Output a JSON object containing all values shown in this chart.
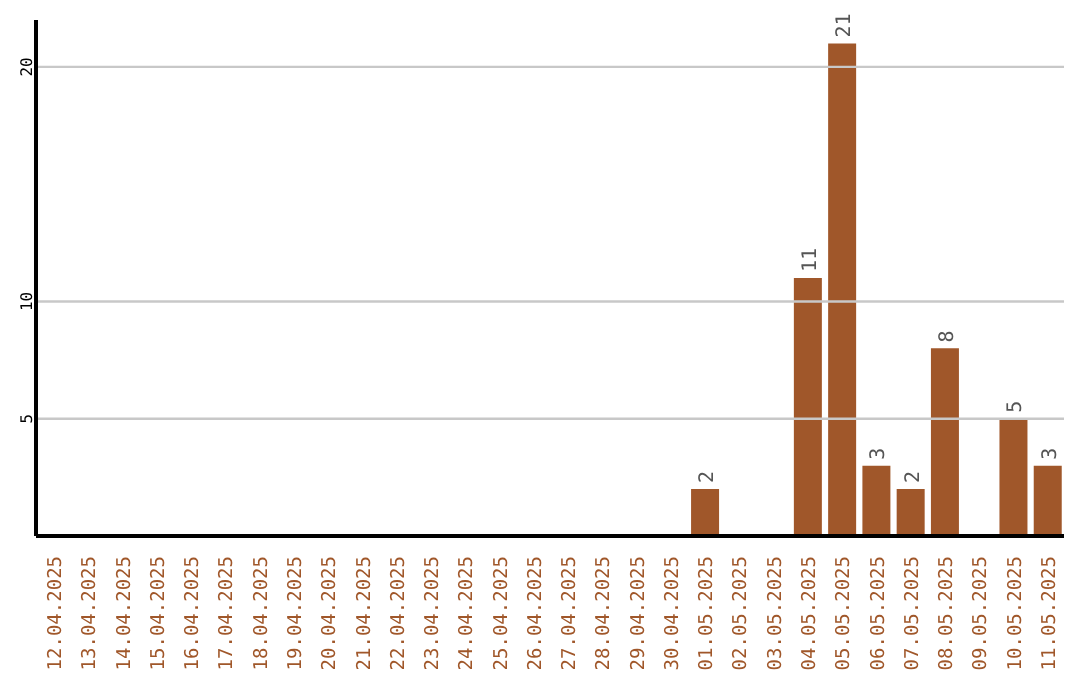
{
  "chart_data": {
    "type": "bar",
    "categories": [
      "12.04.2025",
      "13.04.2025",
      "14.04.2025",
      "15.04.2025",
      "16.04.2025",
      "17.04.2025",
      "18.04.2025",
      "19.04.2025",
      "20.04.2025",
      "21.04.2025",
      "22.04.2025",
      "23.04.2025",
      "24.04.2025",
      "25.04.2025",
      "26.04.2025",
      "27.04.2025",
      "28.04.2025",
      "29.04.2025",
      "30.04.2025",
      "01.05.2025",
      "02.05.2025",
      "03.05.2025",
      "04.05.2025",
      "05.05.2025",
      "06.05.2025",
      "07.05.2025",
      "08.05.2025",
      "09.05.2025",
      "10.05.2025",
      "11.05.2025"
    ],
    "values": [
      null,
      null,
      null,
      null,
      null,
      null,
      null,
      null,
      null,
      null,
      null,
      null,
      null,
      null,
      null,
      null,
      null,
      null,
      null,
      2,
      null,
      null,
      11,
      21,
      3,
      2,
      8,
      null,
      5,
      3
    ],
    "color": "#a0572a",
    "ylim": [
      0,
      22
    ],
    "yticks": [
      5,
      10,
      20
    ],
    "grid": "y",
    "data_labels": true
  }
}
